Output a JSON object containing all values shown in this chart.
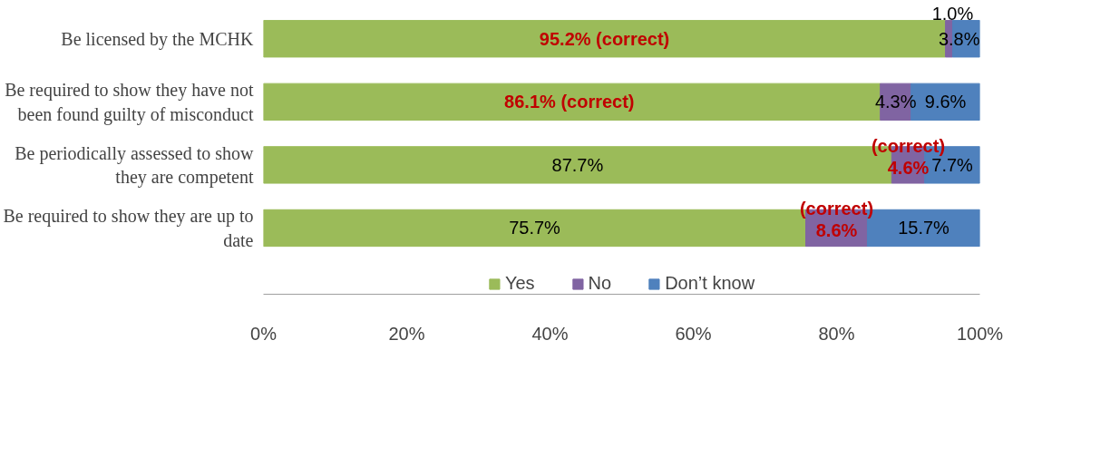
{
  "chart_data": {
    "type": "bar",
    "orientation": "horizontal",
    "stacked": true,
    "categories": [
      "Be licensed by the MCHK",
      "Be required to show they have not been found guilty of misconduct",
      "Be periodically assessed to show they are competent",
      "Be required to show they are up to date"
    ],
    "series": [
      {
        "name": "Yes",
        "color": "#9bbb59",
        "values": [
          95.2,
          86.1,
          87.7,
          75.7
        ],
        "value_labels": [
          "95.2% (correct)",
          "86.1%  (correct)",
          "87.7%",
          "75.7%"
        ]
      },
      {
        "name": "No",
        "color": "#8064a2",
        "values": [
          1.0,
          4.3,
          4.6,
          8.6
        ],
        "value_labels": [
          "1.0%",
          "4.3%",
          "(correct)\n4.6%",
          "(correct)\n8.6%"
        ]
      },
      {
        "name": "Don’t know",
        "color": "#4f81bd",
        "values": [
          3.8,
          9.6,
          7.7,
          15.7
        ],
        "value_labels": [
          "3.8%",
          "9.6%",
          "7.7%",
          "15.7%"
        ]
      }
    ],
    "xlim": [
      0,
      100
    ],
    "xticks": [
      {
        "value": 0,
        "label": "0%"
      },
      {
        "value": 20,
        "label": "20%"
      },
      {
        "value": 40,
        "label": "40%"
      },
      {
        "value": 60,
        "label": "60%"
      },
      {
        "value": 80,
        "label": "80%"
      },
      {
        "value": 100,
        "label": "100%"
      }
    ],
    "grid": false,
    "legend": "bottom"
  }
}
